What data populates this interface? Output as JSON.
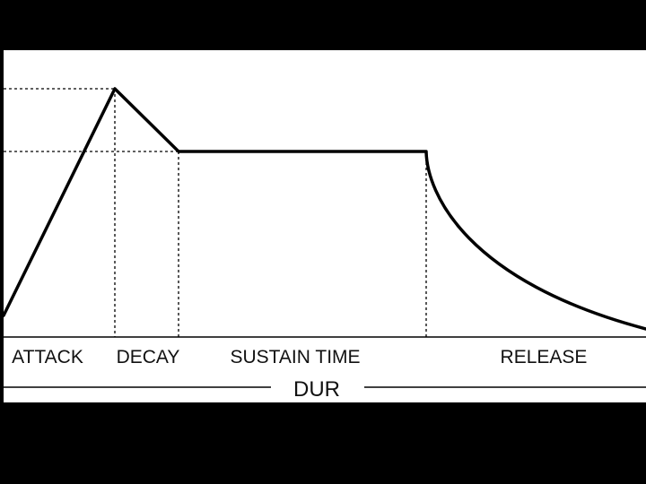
{
  "diagram": {
    "stages": {
      "attack": "ATTACK",
      "decay": "DECAY",
      "sustain_time": "SUSTAIN TIME",
      "release": "RELEASE"
    },
    "duration_label": "DUR",
    "colors": {
      "background": "#000000",
      "panel": "#ffffff",
      "stroke": "#000000",
      "text": "#111111"
    }
  }
}
